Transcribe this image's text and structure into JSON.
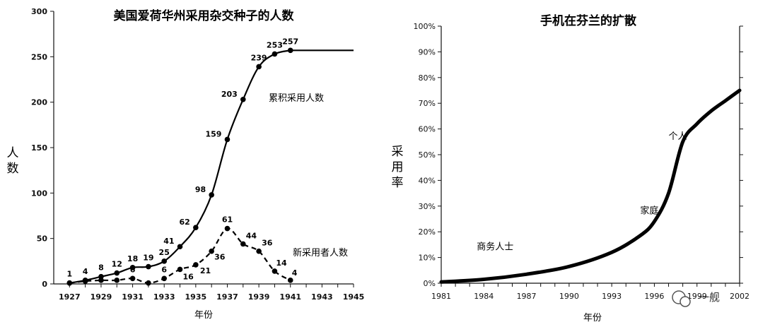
{
  "chart_data": [
    {
      "type": "line",
      "title": "美国爱荷华州采用杂交种子的人数",
      "xlabel": "年份",
      "ylabel": "人数",
      "xlim": [
        1926,
        1945
      ],
      "ylim": [
        0,
        300
      ],
      "x_ticks": [
        "1927",
        "1929",
        "1931",
        "1933",
        "1935",
        "1937",
        "1939",
        "1941",
        "1943",
        "1945"
      ],
      "y_ticks": [
        "0",
        "50",
        "100",
        "150",
        "200",
        "250",
        "300"
      ],
      "series": [
        {
          "name": "累积采用人数",
          "style": "solid",
          "x": [
            1927,
            1928,
            1929,
            1930,
            1931,
            1932,
            1933,
            1934,
            1935,
            1936,
            1937,
            1938,
            1939,
            1940,
            1941
          ],
          "values": [
            1,
            4,
            8,
            12,
            18,
            19,
            25,
            41,
            62,
            98,
            159,
            203,
            239,
            253,
            257
          ],
          "extend_to": 1945
        },
        {
          "name": "新采用者人数",
          "style": "dashed",
          "x": [
            1927,
            1928,
            1929,
            1930,
            1931,
            1932,
            1933,
            1934,
            1935,
            1936,
            1937,
            1938,
            1939,
            1940,
            1941
          ],
          "values": [
            1,
            3,
            4,
            4,
            6,
            1,
            6,
            16,
            21,
            36,
            61,
            44,
            36,
            14,
            4
          ]
        }
      ],
      "grid": false
    },
    {
      "type": "line",
      "title": "手机在芬兰的扩散",
      "xlabel": "年份",
      "ylabel": "采用率",
      "xlim": [
        1981,
        2002
      ],
      "ylim": [
        0,
        100
      ],
      "x_ticks": [
        "1981",
        "1984",
        "1987",
        "1990",
        "1993",
        "1996",
        "1999",
        "2002"
      ],
      "y_ticks": [
        "0%",
        "10%",
        "20%",
        "30%",
        "40%",
        "50%",
        "60%",
        "70%",
        "80%",
        "90%",
        "100%"
      ],
      "series": [
        {
          "x": [
            1981,
            1984,
            1987,
            1990,
            1993,
            1995,
            1996,
            1997,
            1998,
            1999,
            2000,
            2001,
            2002
          ],
          "values": [
            0.5,
            1.5,
            3.5,
            6.5,
            12,
            18.5,
            24,
            35,
            55,
            62,
            67,
            71,
            75
          ]
        }
      ],
      "annotations": [
        {
          "text": "商务人士",
          "x": 1983.5,
          "y": 13
        },
        {
          "text": "家庭",
          "x": 1995,
          "y": 27
        },
        {
          "text": "个人",
          "x": 1997,
          "y": 56
        }
      ],
      "grid": false
    }
  ],
  "watermark": "一舰"
}
